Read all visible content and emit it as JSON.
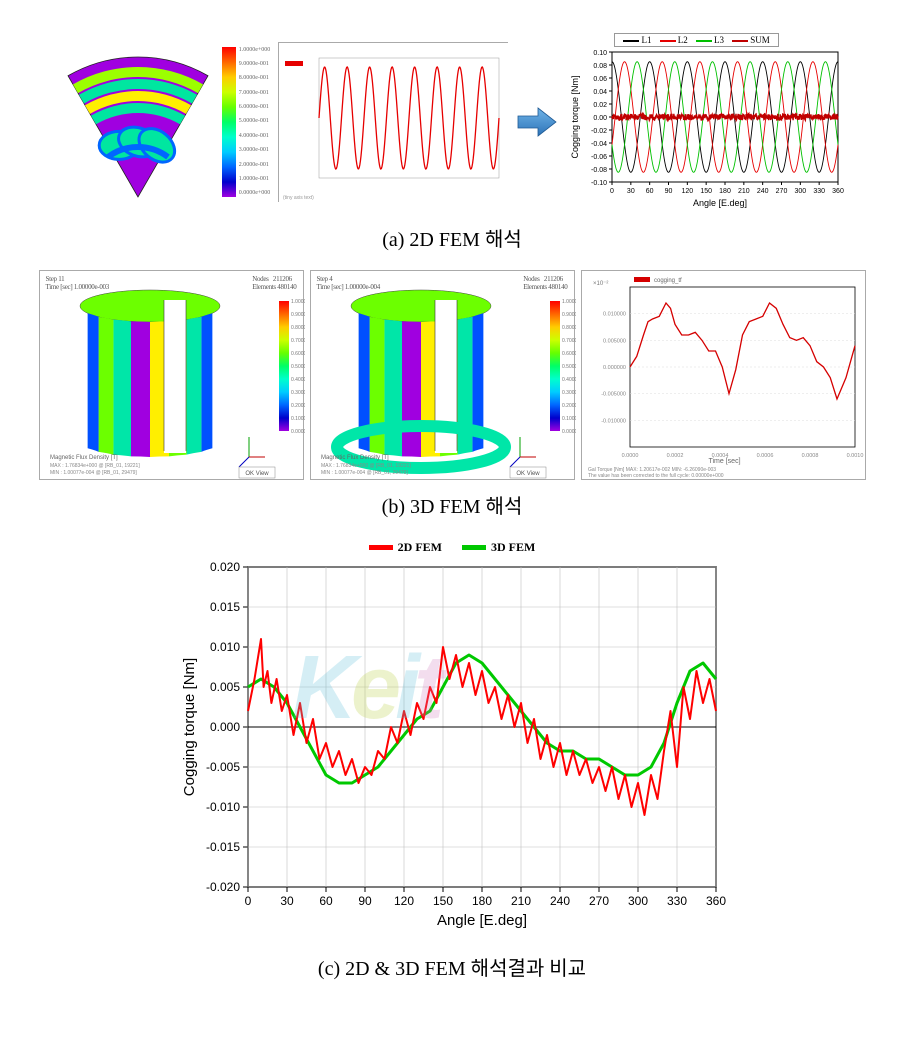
{
  "captions": {
    "a": "(a) 2D FEM 해석",
    "b": "(b) 3D FEM 해석",
    "c": "(c) 2D & 3D FEM 해석결과 비교"
  },
  "section_a": {
    "fan_colors": {
      "outer": "#a000e0",
      "bridge_outer": "#00e6a0",
      "bridge_inner": "#9cff00",
      "hotspot": "#ffef00",
      "coldspot": "#0066ff",
      "outline": "#222"
    },
    "colorbar_stops": [
      "#ff0000",
      "#ff6600",
      "#ffcc00",
      "#ccff00",
      "#66ff00",
      "#00ff66",
      "#00ffcc",
      "#00ccff",
      "#0066ff",
      "#0000cc",
      "#a000e0"
    ],
    "colorbar_labels": [
      "1.0000e+000",
      "9.0000e-001",
      "8.0000e-001",
      "7.0000e-001",
      "6.0000e-001",
      "5.0000e-001",
      "4.0000e-001",
      "3.0000e-001",
      "2.0000e-001",
      "1.0000e-001",
      "0.0000e+000"
    ],
    "sine_plot": {
      "color": "#e60000",
      "bg": "#ffffff",
      "cycles": 8,
      "xrange": [
        0,
        1
      ],
      "yrange": [
        -1,
        1
      ]
    },
    "multi_plot": {
      "series": [
        {
          "name": "L1",
          "color": "#000000"
        },
        {
          "name": "L2",
          "color": "#e60000"
        },
        {
          "name": "L3",
          "color": "#00c000"
        },
        {
          "name": "SUM",
          "color": "#c00000"
        }
      ],
      "ylabel": "Cogging torque [Nm]",
      "ylabel2d": "Cogging torque [Nm]",
      "xlabel": "Angle [E.deg]",
      "ylim": [
        -0.1,
        0.1
      ],
      "yticks": [
        -0.1,
        -0.08,
        -0.06,
        -0.04,
        -0.02,
        0.0,
        0.02,
        0.04,
        0.06,
        0.08,
        0.1
      ],
      "xlim": [
        0,
        360
      ],
      "xticks": [
        0,
        30,
        60,
        90,
        120,
        150,
        180,
        210,
        240,
        270,
        300,
        330,
        360
      ]
    },
    "arrow_color": "#3b8bd6"
  },
  "section_b": {
    "cyl_colors": {
      "face1": "#00e6a8",
      "face2": "#6cff00",
      "face3": "#ffef00",
      "stripe1": "#a000e0",
      "stripe2": "#0050ff",
      "bg": "#fff"
    },
    "waveform_plot": {
      "color": "#d50000",
      "xlim": [
        0,
        0.001
      ],
      "ylim": [
        -0.015,
        0.015
      ],
      "x": [
        0,
        60,
        100,
        160,
        200,
        260,
        320,
        380,
        440,
        500,
        560,
        620,
        680,
        740,
        800,
        860,
        920,
        1000
      ],
      "y": [
        0,
        0.006,
        0.009,
        0.012,
        0.008,
        0.006,
        0.005,
        0.003,
        -0.005,
        0.006,
        0.009,
        0.012,
        0.008,
        0.005,
        0.004,
        0.0,
        -0.006,
        0.004
      ]
    }
  },
  "chart_c": {
    "title_items": [
      {
        "name": "2D FEM",
        "color": "#ff0000"
      },
      {
        "name": "3D FEM",
        "color": "#00c800"
      }
    ],
    "xlabel": "Angle [E.deg]",
    "ylabel": "Cogging torque [Nm]",
    "xlim": [
      0,
      360
    ],
    "xtick_step": 30,
    "ylim": [
      -0.02,
      0.02
    ],
    "ytick_step": 0.005,
    "bg": "#ffffff",
    "grid": "#bfbfbf",
    "axis_color": "#000000",
    "watermark_text": "Keit",
    "watermark_colors": [
      "#5bbfd9",
      "#b7cf3a",
      "#d07bbf"
    ],
    "line_width_2d": 2,
    "line_width_3d": 3,
    "series_2d": {
      "color": "#ff0000",
      "data": [
        [
          0,
          0.002
        ],
        [
          5,
          0.006
        ],
        [
          10,
          0.011
        ],
        [
          12,
          0.005
        ],
        [
          15,
          0.007
        ],
        [
          18,
          0.003
        ],
        [
          22,
          0.006
        ],
        [
          26,
          0.002
        ],
        [
          30,
          0.004
        ],
        [
          35,
          -0.001
        ],
        [
          40,
          0.003
        ],
        [
          45,
          -0.002
        ],
        [
          50,
          0.001
        ],
        [
          55,
          -0.004
        ],
        [
          60,
          -0.002
        ],
        [
          65,
          -0.005
        ],
        [
          70,
          -0.003
        ],
        [
          75,
          -0.006
        ],
        [
          80,
          -0.004
        ],
        [
          85,
          -0.007
        ],
        [
          90,
          -0.005
        ],
        [
          95,
          -0.006
        ],
        [
          100,
          -0.003
        ],
        [
          105,
          -0.004
        ],
        [
          110,
          0.0
        ],
        [
          115,
          -0.002
        ],
        [
          120,
          0.002
        ],
        [
          125,
          -0.001
        ],
        [
          130,
          0.003
        ],
        [
          135,
          0.001
        ],
        [
          140,
          0.005
        ],
        [
          145,
          0.003
        ],
        [
          150,
          0.01
        ],
        [
          155,
          0.006
        ],
        [
          160,
          0.009
        ],
        [
          165,
          0.005
        ],
        [
          170,
          0.008
        ],
        [
          175,
          0.004
        ],
        [
          180,
          0.007
        ],
        [
          185,
          0.003
        ],
        [
          190,
          0.005
        ],
        [
          195,
          0.001
        ],
        [
          200,
          0.004
        ],
        [
          205,
          0.0
        ],
        [
          210,
          0.003
        ],
        [
          215,
          -0.002
        ],
        [
          220,
          0.001
        ],
        [
          225,
          -0.004
        ],
        [
          230,
          -0.001
        ],
        [
          235,
          -0.005
        ],
        [
          240,
          -0.002
        ],
        [
          245,
          -0.006
        ],
        [
          250,
          -0.003
        ],
        [
          255,
          -0.006
        ],
        [
          260,
          -0.004
        ],
        [
          265,
          -0.007
        ],
        [
          270,
          -0.005
        ],
        [
          275,
          -0.008
        ],
        [
          280,
          -0.005
        ],
        [
          285,
          -0.009
        ],
        [
          290,
          -0.006
        ],
        [
          295,
          -0.01
        ],
        [
          300,
          -0.007
        ],
        [
          305,
          -0.011
        ],
        [
          310,
          -0.006
        ],
        [
          315,
          -0.009
        ],
        [
          320,
          -0.003
        ],
        [
          325,
          0.002
        ],
        [
          330,
          -0.005
        ],
        [
          335,
          0.005
        ],
        [
          340,
          0.001
        ],
        [
          345,
          0.007
        ],
        [
          350,
          0.003
        ],
        [
          355,
          0.006
        ],
        [
          360,
          0.002
        ]
      ]
    },
    "series_3d": {
      "color": "#00c800",
      "data": [
        [
          0,
          0.005
        ],
        [
          10,
          0.006
        ],
        [
          20,
          0.005
        ],
        [
          30,
          0.003
        ],
        [
          40,
          0.0
        ],
        [
          50,
          -0.003
        ],
        [
          60,
          -0.006
        ],
        [
          70,
          -0.007
        ],
        [
          80,
          -0.007
        ],
        [
          90,
          -0.006
        ],
        [
          100,
          -0.005
        ],
        [
          110,
          -0.003
        ],
        [
          120,
          -0.001
        ],
        [
          130,
          0.001
        ],
        [
          140,
          0.002
        ],
        [
          150,
          0.005
        ],
        [
          160,
          0.008
        ],
        [
          170,
          0.009
        ],
        [
          180,
          0.008
        ],
        [
          190,
          0.006
        ],
        [
          200,
          0.004
        ],
        [
          210,
          0.002
        ],
        [
          220,
          0.0
        ],
        [
          230,
          -0.002
        ],
        [
          240,
          -0.003
        ],
        [
          250,
          -0.003
        ],
        [
          260,
          -0.004
        ],
        [
          270,
          -0.004
        ],
        [
          280,
          -0.005
        ],
        [
          290,
          -0.006
        ],
        [
          300,
          -0.006
        ],
        [
          310,
          -0.005
        ],
        [
          320,
          -0.002
        ],
        [
          330,
          0.003
        ],
        [
          340,
          0.007
        ],
        [
          350,
          0.008
        ],
        [
          360,
          0.006
        ]
      ]
    }
  }
}
